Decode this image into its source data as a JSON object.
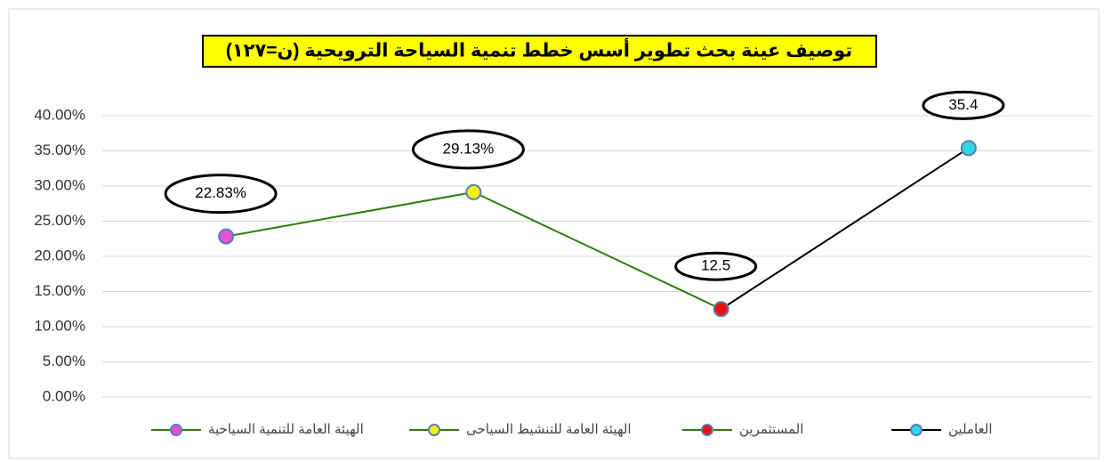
{
  "chart_data": {
    "type": "line",
    "title": "توصيف عينة بحث تطوير أسس خطط تنمية السياحة الترويحية (ن=١٢٧)",
    "categories": [
      "الهيئة العامة للتنمية السياحية",
      "الهيئة العامة للتنشيط السياحى",
      "المستثمرين",
      "العاملين"
    ],
    "values": [
      22.83,
      29.13,
      12.5,
      35.4
    ],
    "value_labels": [
      "22.83%",
      "29.13%",
      "12.5",
      "35.4"
    ],
    "point_colors": [
      "#e64fd8",
      "#f2f20a",
      "#e81010",
      "#2fd6e8"
    ],
    "line_colors": [
      "#2e7d0e",
      "#2e7d0e",
      "#2e7d0e",
      "#000000"
    ],
    "ylim": [
      0,
      40
    ],
    "yticks": [
      {
        "value": 0,
        "label": "0.00%"
      },
      {
        "value": 5,
        "label": "5.00%"
      },
      {
        "value": 10,
        "label": "10.00%"
      },
      {
        "value": 15,
        "label": "15.00%"
      },
      {
        "value": 20,
        "label": "20.00%"
      },
      {
        "value": 25,
        "label": "25.00%"
      },
      {
        "value": 30,
        "label": "30.00%"
      },
      {
        "value": 35,
        "label": "35.00%"
      },
      {
        "value": 40,
        "label": "40.00%"
      }
    ],
    "grid": true
  }
}
